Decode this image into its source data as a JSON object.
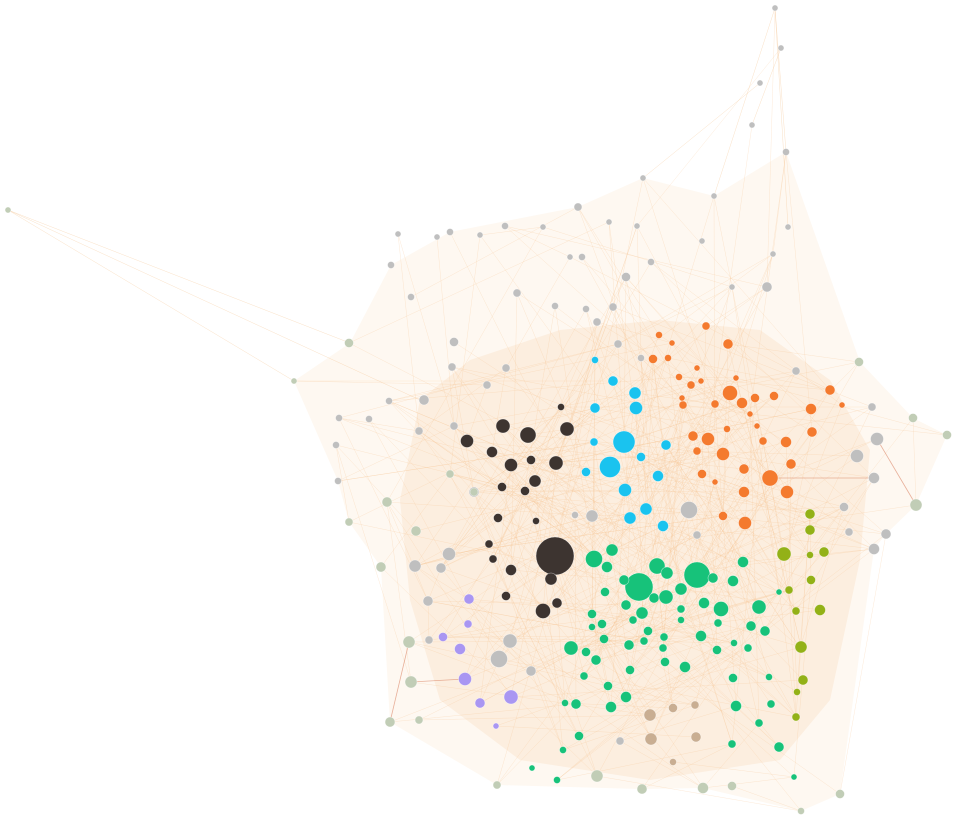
{
  "diagram": {
    "type": "network-graph",
    "background": "#ffffff",
    "edge_color": "#f6c48f",
    "accent_edge_color": "#d98060",
    "clusters": [
      {
        "id": "dark-brown",
        "color": "#3d3430"
      },
      {
        "id": "cyan",
        "color": "#1ac3ef"
      },
      {
        "id": "orange",
        "color": "#f47a2e"
      },
      {
        "id": "green",
        "color": "#17c27a"
      },
      {
        "id": "olive",
        "color": "#93b117"
      },
      {
        "id": "purple",
        "color": "#a996f2"
      },
      {
        "id": "tan",
        "color": "#c9ae92"
      },
      {
        "id": "grey",
        "color": "#bfbfbf"
      },
      {
        "id": "sage",
        "color": "#c1cdb6"
      }
    ]
  }
}
